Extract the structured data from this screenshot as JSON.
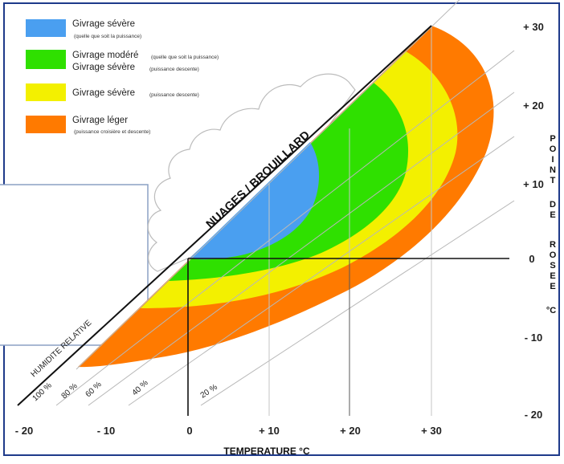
{
  "legend": [
    {
      "color": "#4a9ff0",
      "label": "Givrage sévère",
      "sub": "(quelle que soit la puissance)",
      "label2": "",
      "sub2": ""
    },
    {
      "color": "#2fe000",
      "label": "Givrage modéré",
      "sub": "(quelle que soit la puissance)",
      "label2": "Givrage sévère",
      "sub2": "(puissance descente)"
    },
    {
      "color": "#f3f000",
      "label": "Givrage sévère",
      "sub": "(puissance descente)",
      "label2": "",
      "sub2": ""
    },
    {
      "color": "#ff7a00",
      "label": "Givrage léger",
      "sub": "(puissance croisière et descente)",
      "label2": "",
      "sub2": ""
    }
  ],
  "diagram": {
    "cloud_label": "NUAGES / BROUILLARD",
    "humidity_title": "HUMIDITE RELATIVE",
    "humidity_labels": [
      "100 %",
      "80 %",
      "60 %",
      "40 %",
      "20 %"
    ],
    "x_axis_title": "TEMPERATURE °C",
    "x_ticks": [
      "- 20",
      "- 10",
      "0",
      "+ 10",
      "+ 20",
      "+ 30"
    ],
    "y_ticks": [
      "+ 30",
      "+ 20",
      "+ 10",
      "0",
      "- 10",
      "- 20"
    ],
    "y_axis_title_letters": [
      "P",
      "O",
      "I",
      "N",
      "T",
      "D",
      "E",
      "R",
      "O",
      "S",
      "E",
      "E",
      "°C"
    ]
  }
}
